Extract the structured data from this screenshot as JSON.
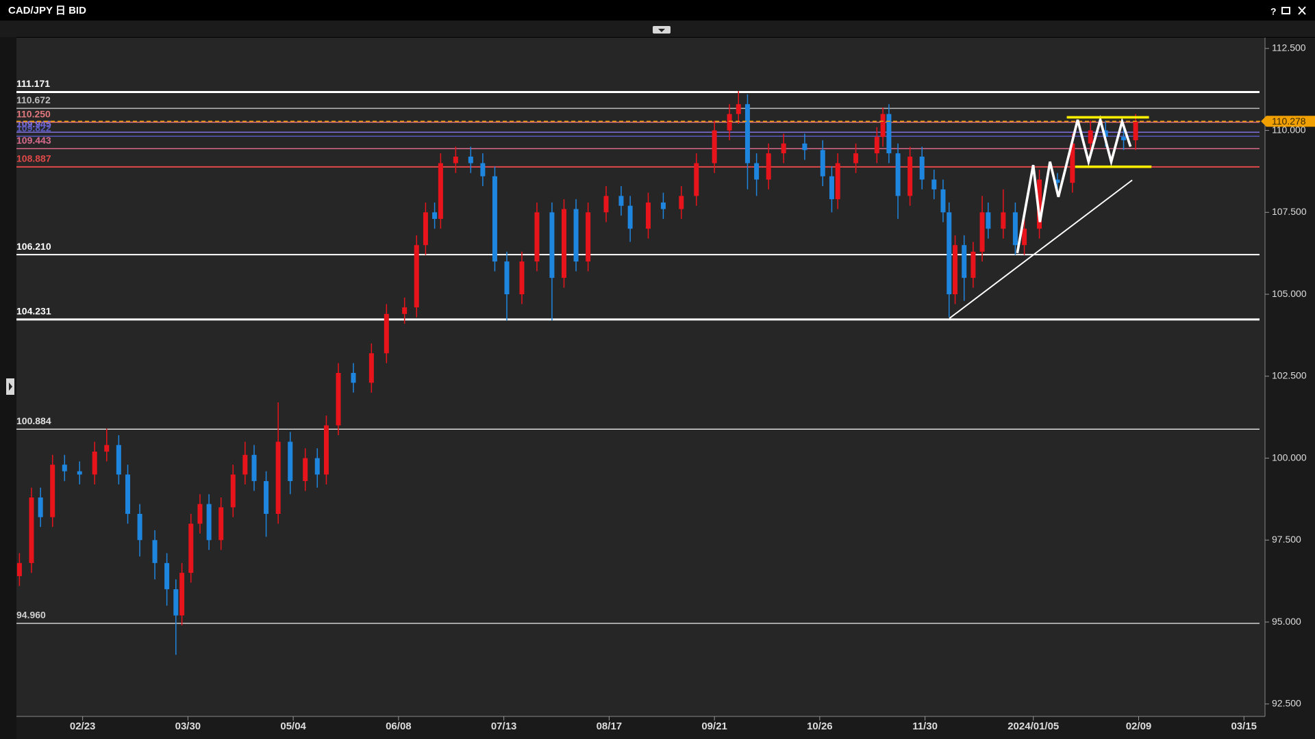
{
  "window": {
    "title": "CAD/JPY 日 BID",
    "help": "?"
  },
  "chart_data": {
    "type": "candlestick",
    "x": [
      -21,
      -17,
      -14,
      -10,
      -6,
      -1,
      4,
      8,
      12,
      15,
      19,
      24,
      28,
      31,
      33,
      36,
      39,
      42,
      46,
      50,
      54,
      57,
      61,
      65,
      69,
      74,
      78,
      81,
      85,
      90,
      96,
      101,
      107,
      111,
      114,
      117,
      119,
      124,
      129,
      133,
      137,
      141,
      146,
      151,
      156,
      160,
      164,
      168,
      174,
      179,
      182,
      188,
      193,
      199,
      204,
      210,
      215,
      218,
      221,
      224,
      228,
      233,
      240,
      246,
      249,
      251,
      257,
      264,
      266,
      268,
      271,
      275,
      279,
      283,
      286,
      288,
      290,
      293,
      296,
      299,
      301,
      306,
      310,
      313,
      318,
      324,
      329,
      335,
      340,
      346,
      350
    ],
    "open": [
      96.4,
      96.8,
      98.8,
      98.2,
      99.8,
      99.6,
      99.5,
      100.2,
      100.4,
      99.5,
      98.3,
      97.5,
      96.8,
      96.0,
      95.2,
      96.5,
      98.0,
      98.6,
      97.5,
      98.5,
      99.5,
      100.1,
      99.3,
      98.3,
      100.5,
      99.3,
      100.0,
      99.5,
      101.0,
      102.6,
      102.3,
      103.2,
      104.4,
      104.6,
      106.5,
      107.5,
      107.3,
      109.0,
      109.2,
      109.0,
      108.6,
      106.0,
      105.0,
      106.0,
      107.5,
      105.5,
      107.6,
      106.0,
      107.5,
      108.0,
      107.7,
      107.0,
      107.8,
      107.6,
      108.0,
      109.0,
      110.0,
      110.5,
      110.8,
      109.0,
      108.5,
      109.3,
      109.6,
      109.4,
      108.6,
      107.9,
      109.0,
      109.3,
      109.8,
      110.5,
      109.3,
      108.0,
      109.2,
      108.5,
      108.2,
      107.5,
      105.0,
      106.5,
      105.5,
      106.3,
      107.5,
      107.0,
      107.5,
      106.5,
      107.0,
      108.5,
      108.4,
      109.6,
      110.0,
      109.8,
      109.7
    ],
    "high": [
      97.1,
      99.1,
      99.1,
      100.1,
      100.1,
      99.9,
      100.5,
      100.9,
      100.7,
      99.8,
      98.6,
      97.8,
      97.1,
      96.3,
      96.8,
      98.3,
      98.9,
      98.9,
      98.8,
      99.8,
      100.5,
      100.4,
      99.6,
      101.7,
      100.8,
      100.3,
      100.3,
      101.3,
      102.9,
      102.9,
      103.5,
      104.7,
      104.9,
      106.8,
      107.8,
      107.8,
      109.3,
      109.5,
      109.5,
      109.3,
      108.9,
      106.3,
      106.3,
      107.8,
      107.8,
      107.9,
      107.9,
      107.8,
      108.3,
      108.3,
      108.0,
      108.1,
      108.1,
      108.3,
      109.3,
      110.3,
      110.8,
      111.2,
      111.1,
      109.3,
      109.6,
      109.9,
      109.9,
      109.7,
      108.9,
      109.3,
      109.6,
      110.1,
      110.7,
      110.8,
      109.6,
      109.5,
      109.5,
      108.8,
      108.5,
      107.8,
      106.8,
      106.8,
      106.6,
      108.0,
      107.8,
      108.2,
      107.8,
      107.3,
      108.8,
      108.7,
      109.9,
      110.3,
      110.3,
      110.1,
      110.5
    ],
    "low": [
      96.1,
      96.5,
      97.9,
      97.9,
      99.3,
      99.2,
      99.2,
      99.9,
      99.2,
      98.0,
      97.0,
      96.3,
      95.5,
      94.0,
      94.9,
      96.2,
      97.7,
      97.2,
      97.2,
      98.2,
      99.2,
      99.0,
      97.6,
      98.0,
      98.9,
      99.0,
      99.1,
      99.2,
      100.7,
      102.0,
      102.0,
      102.9,
      104.1,
      104.3,
      106.2,
      107.0,
      107.0,
      108.7,
      108.7,
      108.3,
      105.7,
      104.2,
      104.7,
      105.7,
      104.2,
      105.2,
      105.7,
      105.7,
      107.2,
      107.4,
      106.6,
      106.7,
      107.3,
      107.3,
      107.7,
      108.7,
      109.7,
      110.2,
      108.2,
      108.0,
      108.2,
      109.0,
      109.1,
      108.3,
      107.5,
      107.6,
      108.7,
      109.0,
      109.5,
      109.0,
      107.3,
      107.7,
      108.2,
      107.9,
      107.2,
      104.3,
      104.7,
      104.8,
      105.2,
      106.0,
      106.7,
      106.7,
      106.2,
      106.2,
      106.7,
      108.1,
      108.1,
      109.3,
      109.5,
      109.4,
      109.4
    ],
    "close": [
      96.8,
      98.8,
      98.2,
      99.8,
      99.6,
      99.5,
      100.2,
      100.4,
      99.5,
      98.3,
      97.5,
      96.8,
      96.0,
      95.2,
      96.5,
      98.0,
      98.6,
      97.5,
      98.5,
      99.5,
      100.1,
      99.3,
      98.3,
      100.5,
      99.3,
      100.0,
      99.5,
      101.0,
      102.6,
      102.3,
      103.2,
      104.4,
      104.6,
      106.5,
      107.5,
      107.3,
      109.0,
      109.2,
      109.0,
      108.6,
      106.0,
      105.0,
      106.0,
      107.5,
      105.5,
      107.6,
      106.0,
      107.5,
      108.0,
      107.7,
      107.0,
      107.8,
      107.6,
      108.0,
      109.0,
      110.0,
      110.5,
      110.8,
      109.0,
      108.5,
      109.3,
      109.6,
      109.4,
      108.6,
      107.9,
      109.0,
      109.3,
      109.8,
      110.5,
      109.3,
      108.0,
      109.2,
      108.5,
      108.2,
      107.5,
      105.0,
      106.5,
      105.5,
      106.3,
      107.5,
      107.0,
      107.5,
      106.5,
      107.0,
      108.5,
      108.4,
      109.6,
      110.0,
      109.8,
      109.7,
      110.278
    ],
    "up_color": "#e8141b",
    "down_color": "#1f86e0",
    "xlim": [
      -22,
      393
    ],
    "xticks": [
      {
        "value": 0,
        "label": "02/23"
      },
      {
        "value": 35,
        "label": "03/30"
      },
      {
        "value": 70,
        "label": "05/04"
      },
      {
        "value": 105,
        "label": "06/08"
      },
      {
        "value": 140,
        "label": "07/13"
      },
      {
        "value": 175,
        "label": "08/17"
      },
      {
        "value": 210,
        "label": "09/21"
      },
      {
        "value": 245,
        "label": "10/26"
      },
      {
        "value": 280,
        "label": "11/30"
      },
      {
        "value": 316,
        "label": "2024/01/05"
      },
      {
        "value": 351,
        "label": "02/09"
      },
      {
        "value": 386,
        "label": "03/15"
      }
    ],
    "ylim": [
      92.12,
      112.83
    ],
    "yticks": [
      {
        "value": 92.5,
        "label": "92.500"
      },
      {
        "value": 95,
        "label": "95.000"
      },
      {
        "value": 97.5,
        "label": "97.500"
      },
      {
        "value": 100,
        "label": "100.000"
      },
      {
        "value": 102.5,
        "label": "102.500"
      },
      {
        "value": 105,
        "label": "105.000"
      },
      {
        "value": 107.5,
        "label": "107.500"
      },
      {
        "value": 110,
        "label": "110.000"
      },
      {
        "value": 112.5,
        "label": "112.500"
      }
    ],
    "levels": [
      {
        "value": 111.171,
        "label": "111.171",
        "color": "#ffffff",
        "width": 3
      },
      {
        "value": 110.672,
        "label": "110.672",
        "color": "#bdbdbd",
        "width": 1.5
      },
      {
        "value": 110.25,
        "label": "110.250",
        "color": "#e0787c",
        "width": 1.5
      },
      {
        "value": 109.945,
        "label": "109.945",
        "color": "#8070e0",
        "width": 1.5
      },
      {
        "value": 109.822,
        "label": "109.822",
        "color": "#5a5ac0",
        "width": 1.5
      },
      {
        "value": 109.443,
        "label": "109.443",
        "color": "#d86a8c",
        "width": 1.5
      },
      {
        "value": 108.887,
        "label": "108.887",
        "color": "#e04848",
        "width": 2
      },
      {
        "value": 106.21,
        "label": "106.210",
        "color": "#ffffff",
        "width": 2
      },
      {
        "value": 104.231,
        "label": "104.231",
        "color": "#ffffff",
        "width": 3
      },
      {
        "value": 100.884,
        "label": "100.884",
        "color": "#e0e0e0",
        "width": 1.5
      },
      {
        "value": 94.96,
        "label": "94.960",
        "color": "#d0d0d0",
        "width": 1.5
      }
    ],
    "last_price": 110.278,
    "last_color": "#f0a000"
  }
}
